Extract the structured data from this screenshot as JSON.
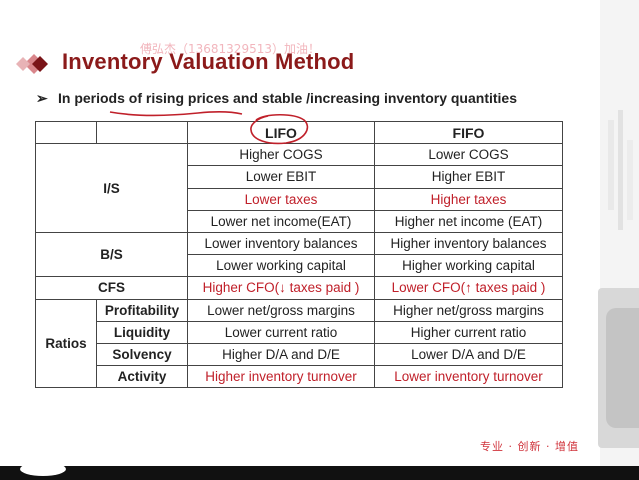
{
  "slide": {
    "title": "Inventory Valuation Method",
    "watermark": "傅弘杰（13681329513）加油！",
    "subtitle_bullet": "➢",
    "subtitle": "In periods of rising prices and stable /increasing inventory quantities",
    "footer": "专业 · 创新 · 增值"
  },
  "table": {
    "headers": {
      "lifo": "LIFO",
      "fifo": "FIFO"
    },
    "sections": {
      "is": "I/S",
      "bs": "B/S",
      "cfs": "CFS",
      "ratios": "Ratios"
    },
    "rows": {
      "cogs": {
        "lifo": "Higher COGS",
        "fifo": "Lower COGS"
      },
      "ebit": {
        "lifo": "Lower EBIT",
        "fifo": "Higher EBIT"
      },
      "taxes": {
        "lifo": "Lower taxes",
        "fifo": "Higher taxes"
      },
      "ni": {
        "lifo": "Lower net income(EAT)",
        "fifo": "Higher net income (EAT)"
      },
      "inv": {
        "lifo": "Lower inventory balances",
        "fifo": "Higher inventory balances"
      },
      "wc": {
        "lifo": "Lower working capital",
        "fifo": "Higher working capital"
      },
      "cfo": {
        "lifo": "Higher CFO(↓ taxes paid )",
        "fifo": "Lower CFO(↑ taxes paid )"
      },
      "profit": {
        "label": "Profitability",
        "lifo": "Lower net/gross margins",
        "fifo": "Higher net/gross margins"
      },
      "liq": {
        "label": "Liquidity",
        "lifo": "Lower current ratio",
        "fifo": "Higher current ratio"
      },
      "solv": {
        "label": "Solvency",
        "lifo": "Higher D/A and D/E",
        "fifo": "Lower D/A and D/E"
      },
      "act": {
        "label": "Activity",
        "lifo": "Higher inventory turnover",
        "fifo": "Lower inventory turnover"
      }
    }
  },
  "colors": {
    "title": "#8b1a1a",
    "highlight_red": "#c0202a",
    "logo_dark": "#7a1418",
    "logo_light": "#d9868b"
  },
  "icons": {
    "logo": "diamond-logo-icon",
    "bullet": "arrow-bullet-icon"
  }
}
